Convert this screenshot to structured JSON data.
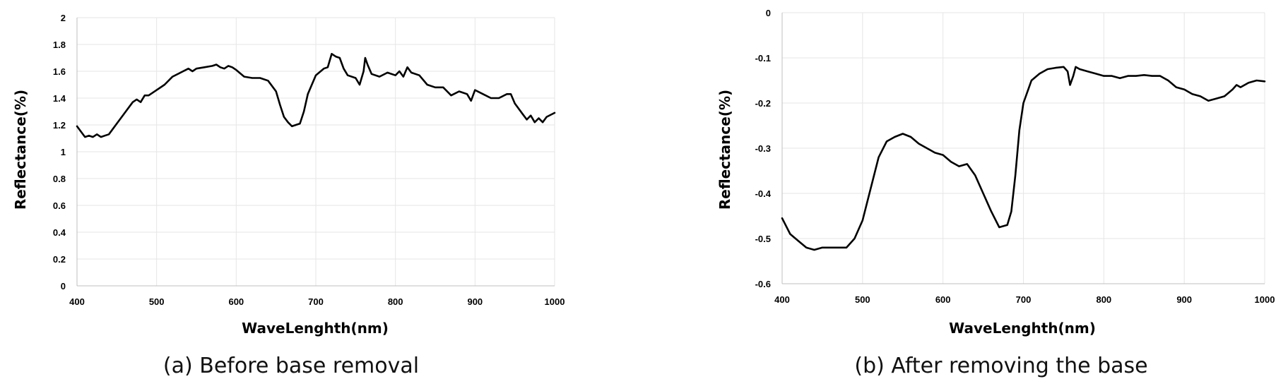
{
  "chart_data": [
    {
      "type": "line",
      "caption": "(a) Before base removal",
      "xlabel": "WaveLenghth(nm)",
      "ylabel": "Reflectance(%)",
      "xlim": [
        400,
        1000
      ],
      "ylim": [
        0,
        2
      ],
      "xticks": [
        400,
        500,
        600,
        700,
        800,
        900,
        1000
      ],
      "yticks": [
        0,
        0.2,
        0.4,
        0.6,
        0.8,
        1,
        1.2,
        1.4,
        1.6,
        1.8,
        2
      ],
      "xtick_labels": [
        "400",
        "500",
        "600",
        "700",
        "800",
        "900",
        "1000"
      ],
      "ytick_labels": [
        "0",
        "0.2",
        "0.4",
        "0.6",
        "0.8",
        "1",
        "1.2",
        "1.4",
        "1.6",
        "1.8",
        "2"
      ],
      "grid": true,
      "series": [
        {
          "x": [
            400,
            405,
            410,
            415,
            420,
            425,
            430,
            435,
            440,
            450,
            460,
            470,
            475,
            480,
            485,
            490,
            500,
            510,
            520,
            530,
            540,
            545,
            550,
            560,
            570,
            575,
            580,
            585,
            590,
            595,
            600,
            610,
            620,
            630,
            640,
            650,
            655,
            660,
            665,
            670,
            675,
            680,
            685,
            690,
            700,
            710,
            715,
            720,
            725,
            730,
            735,
            740,
            750,
            755,
            760,
            762,
            765,
            770,
            780,
            790,
            800,
            805,
            810,
            815,
            820,
            830,
            840,
            850,
            860,
            870,
            880,
            885,
            890,
            895,
            900,
            910,
            920,
            930,
            940,
            945,
            950,
            960,
            965,
            970,
            975,
            980,
            985,
            990,
            1000
          ],
          "y": [
            1.19,
            1.15,
            1.11,
            1.12,
            1.11,
            1.13,
            1.11,
            1.12,
            1.13,
            1.21,
            1.29,
            1.37,
            1.39,
            1.37,
            1.42,
            1.42,
            1.46,
            1.5,
            1.56,
            1.59,
            1.62,
            1.6,
            1.62,
            1.63,
            1.64,
            1.65,
            1.63,
            1.62,
            1.64,
            1.63,
            1.61,
            1.56,
            1.55,
            1.55,
            1.53,
            1.45,
            1.35,
            1.26,
            1.22,
            1.19,
            1.2,
            1.21,
            1.3,
            1.43,
            1.57,
            1.62,
            1.63,
            1.73,
            1.71,
            1.7,
            1.62,
            1.57,
            1.55,
            1.5,
            1.6,
            1.7,
            1.65,
            1.58,
            1.56,
            1.59,
            1.57,
            1.6,
            1.56,
            1.63,
            1.59,
            1.57,
            1.5,
            1.48,
            1.48,
            1.42,
            1.45,
            1.44,
            1.43,
            1.38,
            1.46,
            1.43,
            1.4,
            1.4,
            1.43,
            1.43,
            1.36,
            1.28,
            1.24,
            1.27,
            1.22,
            1.25,
            1.22,
            1.26,
            1.29
          ]
        }
      ]
    },
    {
      "type": "line",
      "caption": "(b) After removing the base",
      "xlabel": "WaveLenghth(nm)",
      "ylabel": "Reflectance(%)",
      "xlim": [
        400,
        1000
      ],
      "ylim": [
        -0.6,
        0
      ],
      "xticks": [
        400,
        500,
        600,
        700,
        800,
        900,
        1000
      ],
      "yticks": [
        -0.6,
        -0.5,
        -0.4,
        -0.3,
        -0.2,
        -0.1,
        0
      ],
      "xtick_labels": [
        "400",
        "500",
        "600",
        "700",
        "800",
        "900",
        "1000"
      ],
      "ytick_labels": [
        "-0.6",
        "-0.5",
        "-0.4",
        "-0.3",
        "-0.2",
        "-0.1",
        "0"
      ],
      "grid": true,
      "series": [
        {
          "x": [
            400,
            410,
            420,
            430,
            440,
            450,
            460,
            470,
            480,
            490,
            500,
            510,
            520,
            530,
            540,
            550,
            560,
            570,
            580,
            590,
            600,
            610,
            620,
            630,
            640,
            650,
            660,
            670,
            680,
            685,
            690,
            695,
            700,
            710,
            720,
            730,
            740,
            750,
            755,
            758,
            762,
            765,
            770,
            780,
            790,
            800,
            810,
            820,
            830,
            840,
            850,
            860,
            870,
            880,
            890,
            900,
            910,
            920,
            930,
            940,
            950,
            960,
            965,
            970,
            980,
            990,
            1000
          ],
          "y": [
            -0.455,
            -0.49,
            -0.505,
            -0.52,
            -0.525,
            -0.52,
            -0.52,
            -0.52,
            -0.52,
            -0.5,
            -0.46,
            -0.39,
            -0.32,
            -0.285,
            -0.275,
            -0.268,
            -0.275,
            -0.29,
            -0.3,
            -0.31,
            -0.315,
            -0.33,
            -0.34,
            -0.335,
            -0.36,
            -0.4,
            -0.44,
            -0.475,
            -0.47,
            -0.44,
            -0.36,
            -0.26,
            -0.2,
            -0.15,
            -0.135,
            -0.125,
            -0.122,
            -0.12,
            -0.13,
            -0.16,
            -0.14,
            -0.12,
            -0.125,
            -0.13,
            -0.135,
            -0.14,
            -0.14,
            -0.145,
            -0.14,
            -0.14,
            -0.138,
            -0.14,
            -0.14,
            -0.15,
            -0.165,
            -0.17,
            -0.18,
            -0.185,
            -0.195,
            -0.19,
            -0.185,
            -0.17,
            -0.16,
            -0.165,
            -0.155,
            -0.15,
            -0.152
          ]
        }
      ]
    }
  ]
}
